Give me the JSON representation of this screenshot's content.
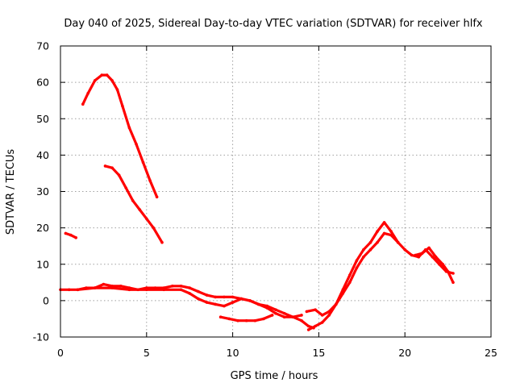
{
  "chart_data": {
    "type": "line",
    "title": "Day 040 of 2025, Sidereal Day-to-day VTEC variation (SDTVAR) for receiver hlfx",
    "xlabel": "GPS time / hours",
    "ylabel": "SDTVAR / TECUs",
    "xlim": [
      0,
      25
    ],
    "ylim": [
      -10,
      70
    ],
    "xticks": [
      0,
      5,
      10,
      15,
      20,
      25
    ],
    "yticks": [
      -10,
      0,
      10,
      20,
      30,
      40,
      50,
      60,
      70
    ],
    "grid": true,
    "legend": "none",
    "color": "#ff0000",
    "series": [
      {
        "name": "arc-1",
        "x": [
          1.3,
          1.6,
          2.0,
          2.4,
          2.7,
          3.0,
          3.3,
          3.6,
          4.0,
          4.4,
          4.8,
          5.2,
          5.6
        ],
        "y": [
          54,
          57,
          60.5,
          62,
          62,
          60.5,
          58,
          53.5,
          47.5,
          43,
          38,
          33,
          28.5
        ]
      },
      {
        "name": "arc-2",
        "x": [
          2.6,
          3.0,
          3.4,
          3.8,
          4.2,
          4.6,
          5.0,
          5.4,
          5.9
        ],
        "y": [
          37,
          36.5,
          34.5,
          31,
          27.5,
          25,
          22.5,
          20,
          16
        ]
      },
      {
        "name": "arc-3",
        "x": [
          0.3,
          0.6,
          0.9
        ],
        "y": [
          18.5,
          18,
          17.3
        ]
      },
      {
        "name": "arc-4",
        "x": [
          0,
          0.5,
          1.0,
          1.5,
          2.0,
          2.5,
          3.0,
          3.5,
          4.0,
          4.5,
          5.0,
          5.5,
          6.0,
          6.5,
          7.0,
          7.5,
          8.0,
          8.5,
          9.0,
          9.5,
          10.0,
          10.5,
          11.0,
          11.5,
          12.0,
          12.5,
          13.0,
          13.5,
          14.0,
          14.4,
          14.7
        ],
        "y": [
          3,
          3,
          3,
          3.5,
          3.5,
          4.5,
          4,
          4,
          3.5,
          3,
          3.5,
          3.5,
          3.5,
          4,
          4,
          3.5,
          2.5,
          1.5,
          1,
          1,
          1,
          0.5,
          0,
          -1,
          -1.5,
          -2.5,
          -3.5,
          -4.5,
          -5.5,
          -7,
          -7.5
        ]
      },
      {
        "name": "arc-5",
        "x": [
          1.0,
          2.0,
          3.0,
          4.0,
          5.0,
          6.0,
          7.0,
          7.5,
          8.0,
          8.5,
          9.0,
          9.5,
          10.0,
          10.5,
          11.0,
          11.5,
          12.0,
          12.5,
          13.0,
          13.5,
          14.0
        ],
        "y": [
          3,
          3.5,
          3.5,
          3,
          3,
          3,
          3,
          2,
          0.5,
          -0.5,
          -1,
          -1.5,
          -0.5,
          0.5,
          0,
          -1,
          -2,
          -3.5,
          -4.5,
          -4.5,
          -4
        ]
      },
      {
        "name": "arc-6",
        "x": [
          9.3,
          9.8,
          10.3,
          10.8,
          11.3,
          11.8,
          12.3
        ],
        "y": [
          -4.5,
          -5,
          -5.5,
          -5.5,
          -5.5,
          -5,
          -4
        ]
      },
      {
        "name": "arc-7",
        "x": [
          14.3,
          14.8,
          15.2,
          15.6,
          16.0,
          16.4,
          16.8,
          17.2,
          17.6,
          18.0,
          18.4,
          18.8,
          19.2,
          19.6
        ],
        "y": [
          -3,
          -2.5,
          -4,
          -3,
          -1,
          3,
          7,
          11,
          14,
          16,
          19,
          21.5,
          19,
          16
        ]
      },
      {
        "name": "arc-8",
        "x": [
          14.4,
          14.8,
          15.2,
          15.6,
          16.0,
          16.4,
          16.8,
          17.2,
          17.6,
          18.0,
          18.4,
          18.8,
          19.2,
          19.6,
          20.0,
          20.4,
          20.8,
          21.2,
          21.6,
          22.0,
          22.4,
          22.8
        ],
        "y": [
          -8,
          -7,
          -6,
          -4,
          -1,
          2,
          5,
          9,
          12,
          14,
          16,
          18.5,
          18,
          16,
          14,
          12.5,
          12,
          14,
          12,
          10,
          8,
          7.5
        ]
      },
      {
        "name": "arc-9",
        "x": [
          20.6,
          21.0,
          21.4,
          21.8,
          22.2,
          22.5,
          22.8
        ],
        "y": [
          12.5,
          13,
          14.5,
          12,
          10,
          8,
          5
        ]
      }
    ]
  }
}
